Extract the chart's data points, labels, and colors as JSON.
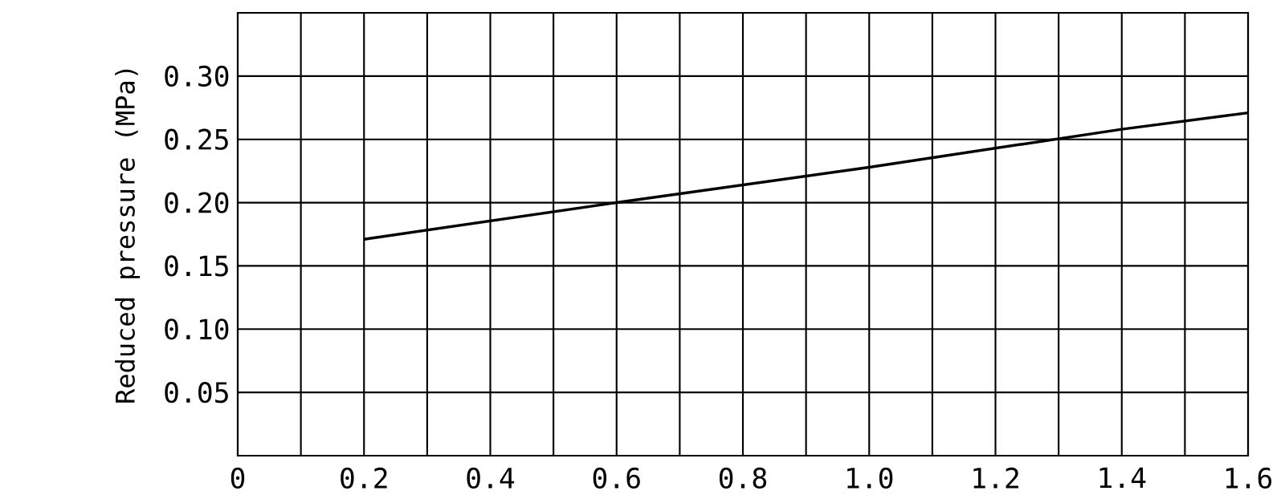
{
  "chart_data": {
    "type": "line",
    "ylabel": "Reduced pressure (MPa)",
    "x": [
      0.2,
      0.6,
      1.0,
      1.4,
      1.6
    ],
    "series": [
      {
        "color": "#000000",
        "values": [
          0.171,
          0.2,
          0.228,
          0.258,
          0.271
        ]
      }
    ],
    "xlim": [
      0,
      1.6
    ],
    "xticks": [
      {
        "value": 0,
        "label": "0"
      },
      {
        "value": 0.1,
        "label": null
      },
      {
        "value": 0.2,
        "label": "0.2"
      },
      {
        "value": 0.3,
        "label": null
      },
      {
        "value": 0.4,
        "label": "0.4"
      },
      {
        "value": 0.5,
        "label": null
      },
      {
        "value": 0.6,
        "label": "0.6"
      },
      {
        "value": 0.7,
        "label": null
      },
      {
        "value": 0.8,
        "label": "0.8"
      },
      {
        "value": 0.9,
        "label": null
      },
      {
        "value": 1.0,
        "label": "1.0"
      },
      {
        "value": 1.1,
        "label": null
      },
      {
        "value": 1.2,
        "label": "1.2"
      },
      {
        "value": 1.3,
        "label": null
      },
      {
        "value": 1.4,
        "label": "1.4"
      },
      {
        "value": 1.5,
        "label": null
      },
      {
        "value": 1.6,
        "label": "1.6"
      }
    ],
    "ylim": [
      0,
      0.35
    ],
    "yticks": [
      {
        "value": 0.05,
        "label": "0.05"
      },
      {
        "value": 0.1,
        "label": "0.10"
      },
      {
        "value": 0.15,
        "label": "0.15"
      },
      {
        "value": 0.2,
        "label": "0.20"
      },
      {
        "value": 0.25,
        "label": "0.25"
      },
      {
        "value": 0.3,
        "label": "0.30"
      },
      {
        "value": 0.35,
        "label": null
      }
    ],
    "grid": true,
    "marker": "none",
    "line_style": "solid"
  }
}
